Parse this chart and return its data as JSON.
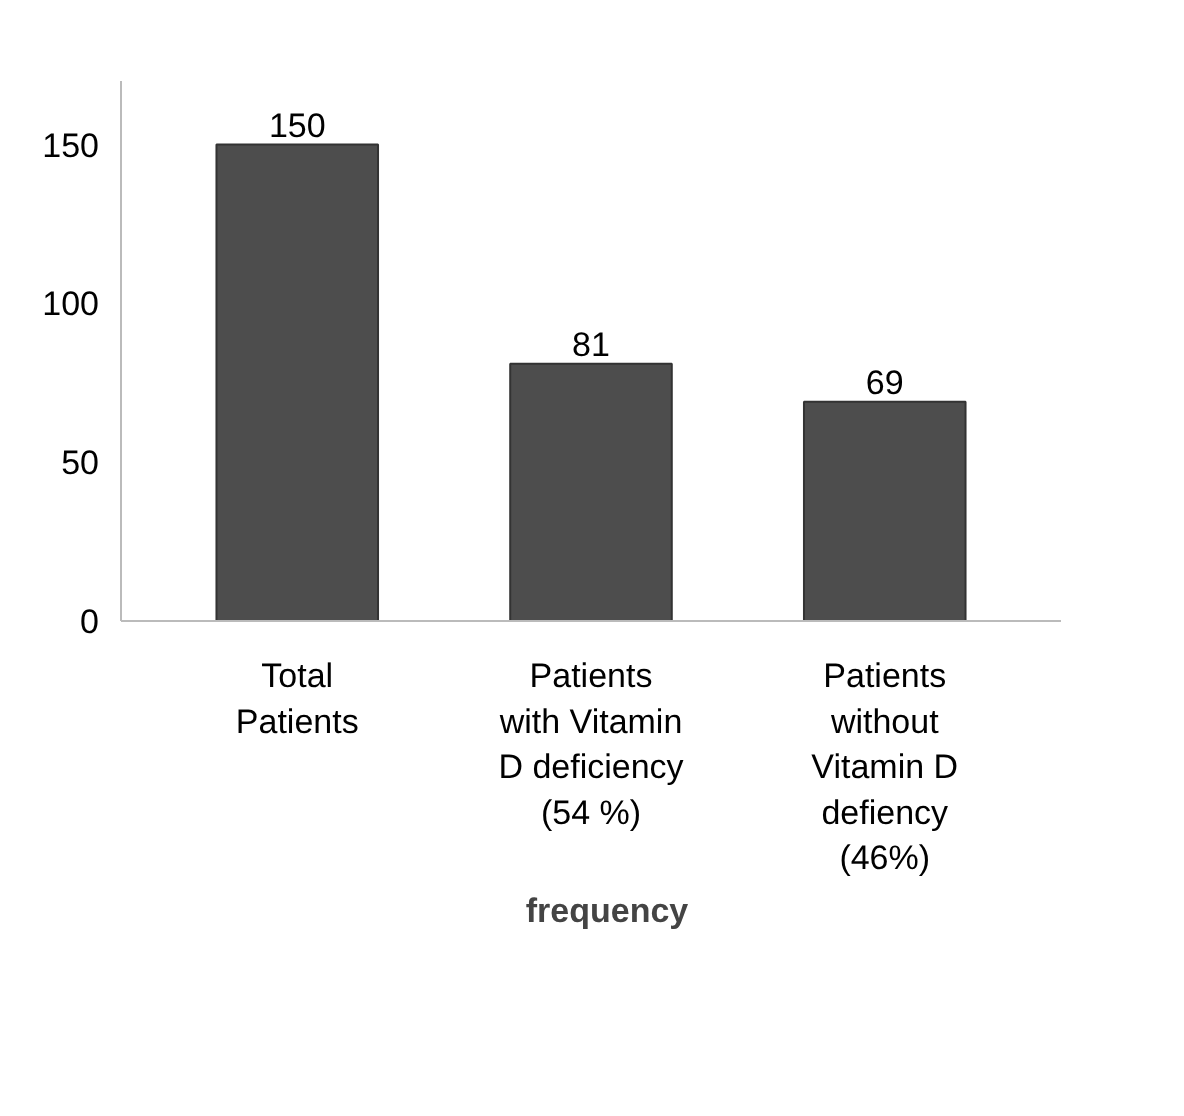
{
  "chart_data": {
    "type": "bar",
    "categories": [
      "Total Patients",
      "Patients with Vitamin D deficiency (54 %)",
      "Patients without Vitamin D defiency (46%)"
    ],
    "series": [
      {
        "name": "frequency",
        "color": "#4d4d4d",
        "values": [
          150,
          81,
          69
        ]
      }
    ],
    "ylim": [
      0,
      170
    ],
    "yticks": [
      0,
      50,
      100,
      150
    ],
    "data_labels": true,
    "grid": false,
    "legend": "bottom"
  }
}
